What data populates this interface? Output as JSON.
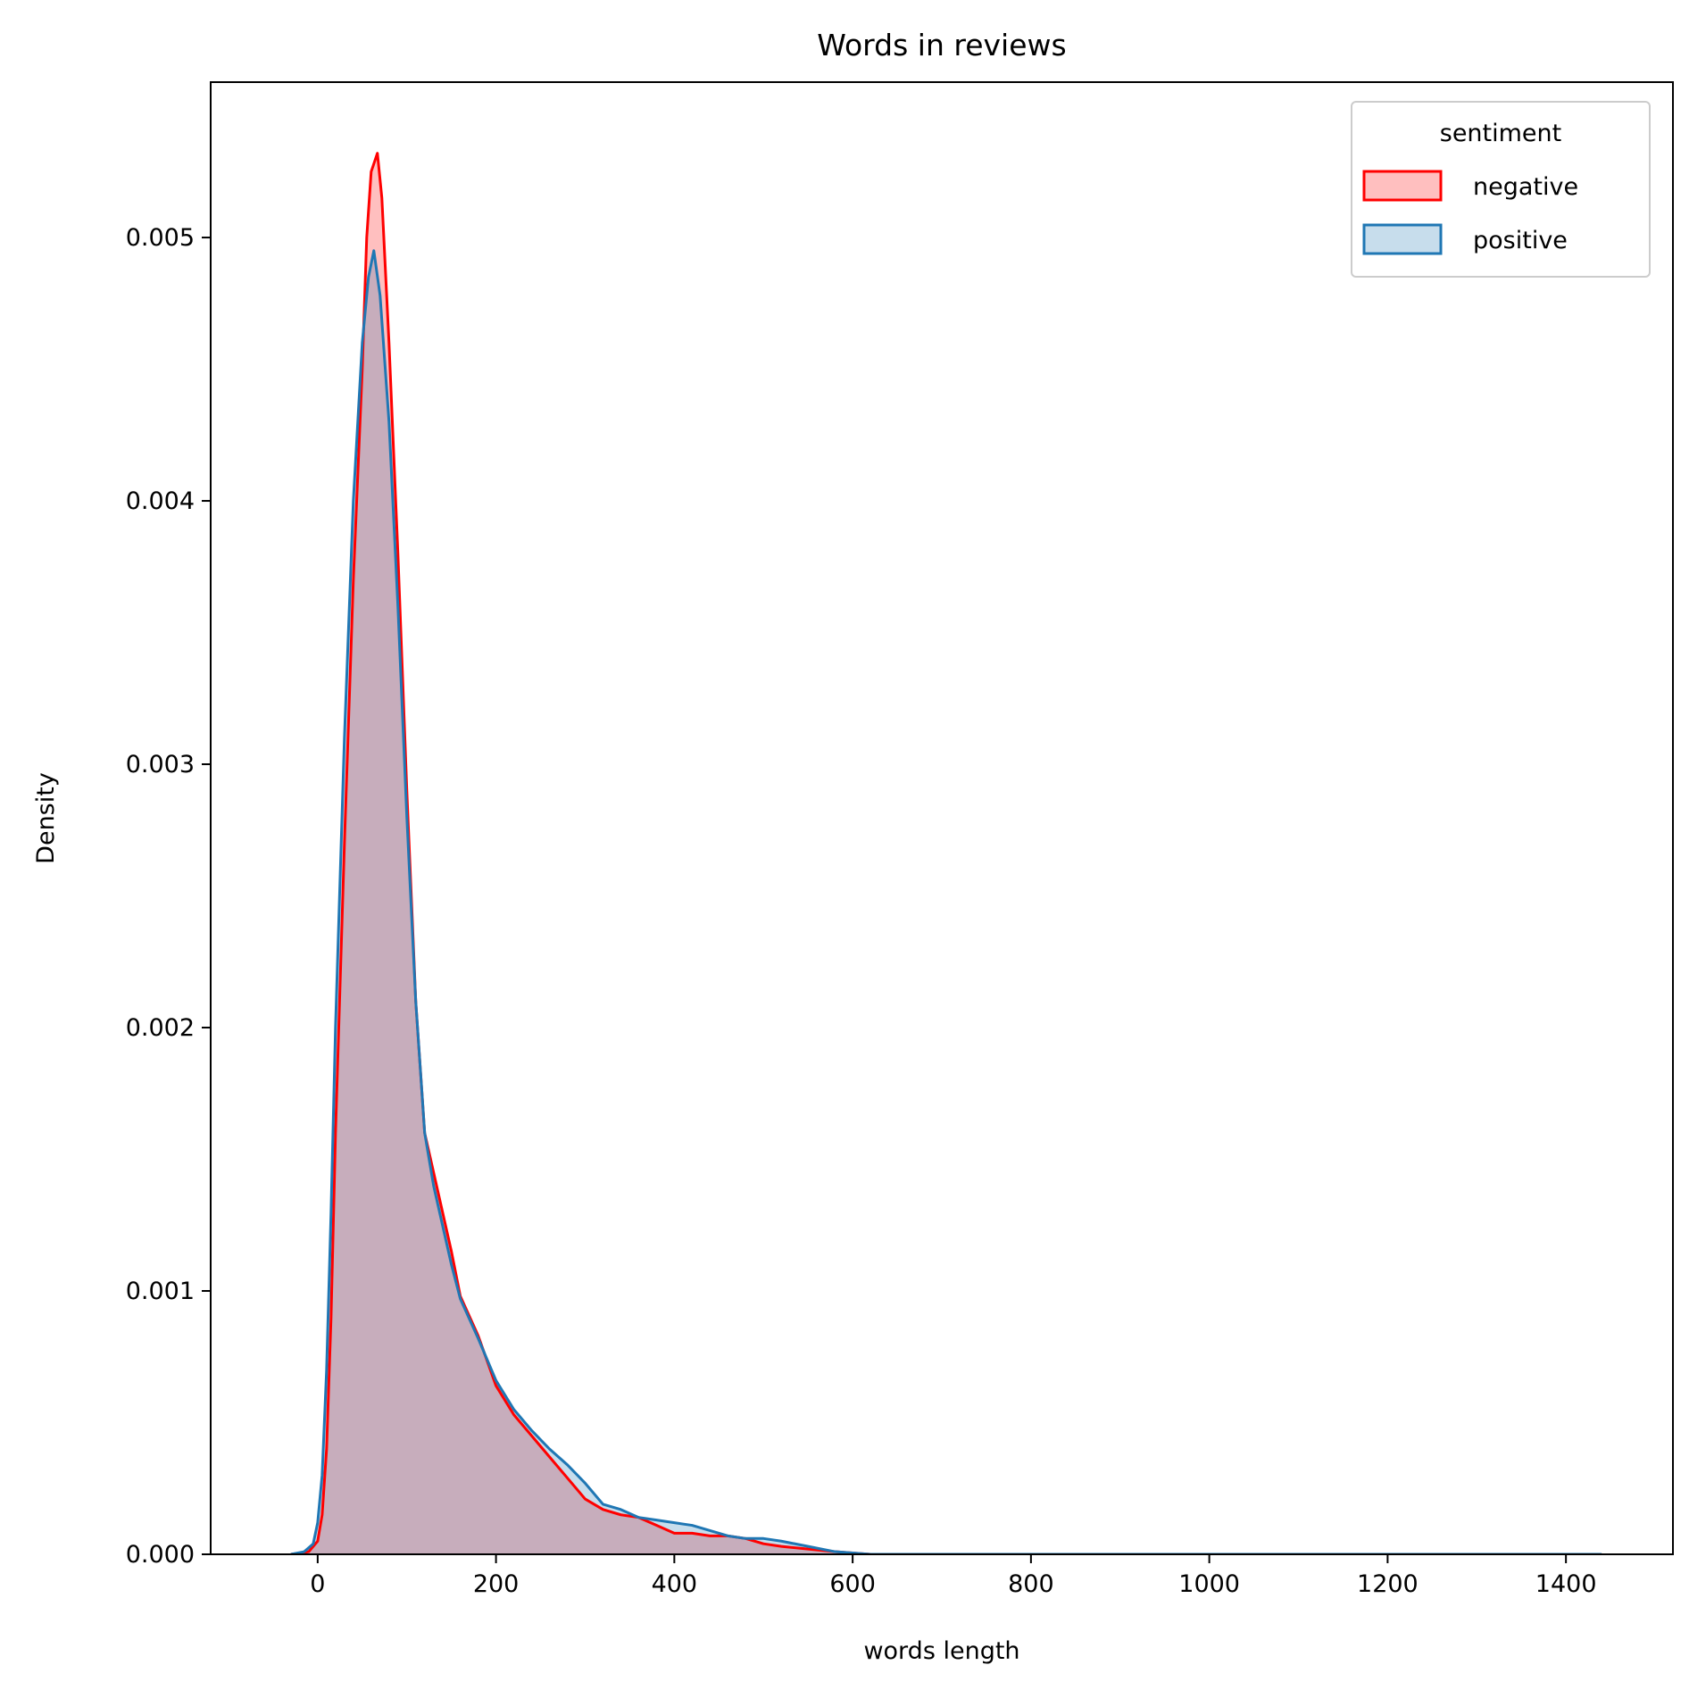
{
  "chart_data": {
    "type": "area",
    "title": "Words in reviews",
    "xlabel": "words length",
    "ylabel": "Density",
    "xlim": [
      -120,
      1520
    ],
    "ylim": [
      0,
      0.00559
    ],
    "x_ticks": [
      0,
      200,
      400,
      600,
      800,
      1000,
      1200,
      1400
    ],
    "x_tick_labels": [
      "0",
      "200",
      "400",
      "600",
      "800",
      "1000",
      "1200",
      "1400"
    ],
    "y_ticks": [
      0,
      0.001,
      0.002,
      0.003,
      0.004,
      0.005
    ],
    "y_tick_labels": [
      "0.000",
      "0.001",
      "0.002",
      "0.003",
      "0.004",
      "0.005"
    ],
    "grid": false,
    "legend": {
      "title": "sentiment",
      "placement": "top-right"
    },
    "series": [
      {
        "name": "negative",
        "line_color": "#ff0000",
        "fill_color": "#ff0000",
        "fill_opacity": 0.25,
        "points": [
          [
            -30,
            0
          ],
          [
            -10,
            1e-05
          ],
          [
            0,
            5e-05
          ],
          [
            5,
            0.00015
          ],
          [
            10,
            0.0004
          ],
          [
            15,
            0.0009
          ],
          [
            20,
            0.0016
          ],
          [
            30,
            0.0027
          ],
          [
            40,
            0.0037
          ],
          [
            50,
            0.0045
          ],
          [
            55,
            0.005
          ],
          [
            60,
            0.00525
          ],
          [
            67,
            0.00532
          ],
          [
            72,
            0.00515
          ],
          [
            80,
            0.0046
          ],
          [
            90,
            0.0038
          ],
          [
            100,
            0.0029
          ],
          [
            110,
            0.0021
          ],
          [
            120,
            0.0016
          ],
          [
            130,
            0.00145
          ],
          [
            140,
            0.0013
          ],
          [
            150,
            0.00115
          ],
          [
            160,
            0.00098
          ],
          [
            180,
            0.00083
          ],
          [
            200,
            0.00064
          ],
          [
            220,
            0.00053
          ],
          [
            240,
            0.00045
          ],
          [
            260,
            0.00037
          ],
          [
            280,
            0.00029
          ],
          [
            300,
            0.00021
          ],
          [
            320,
            0.00017
          ],
          [
            340,
            0.00015
          ],
          [
            360,
            0.00014
          ],
          [
            380,
            0.00011
          ],
          [
            400,
            8e-05
          ],
          [
            420,
            8e-05
          ],
          [
            440,
            7e-05
          ],
          [
            460,
            7e-05
          ],
          [
            480,
            6e-05
          ],
          [
            500,
            4e-05
          ],
          [
            520,
            3e-05
          ],
          [
            550,
            2e-05
          ],
          [
            580,
            1e-05
          ],
          [
            620,
            0
          ],
          [
            700,
            0
          ],
          [
            900,
            0
          ],
          [
            1100,
            0
          ],
          [
            1300,
            0
          ],
          [
            1440,
            0
          ]
        ]
      },
      {
        "name": "positive",
        "line_color": "#1f77b4",
        "fill_color": "#1f77b4",
        "fill_opacity": 0.25,
        "points": [
          [
            -30,
            0
          ],
          [
            -15,
            1e-05
          ],
          [
            -5,
            4e-05
          ],
          [
            0,
            0.00012
          ],
          [
            5,
            0.0003
          ],
          [
            10,
            0.0007
          ],
          [
            15,
            0.0013
          ],
          [
            20,
            0.002
          ],
          [
            30,
            0.0031
          ],
          [
            40,
            0.004
          ],
          [
            50,
            0.0046
          ],
          [
            57,
            0.00485
          ],
          [
            63,
            0.00495
          ],
          [
            70,
            0.00478
          ],
          [
            80,
            0.0043
          ],
          [
            90,
            0.0036
          ],
          [
            100,
            0.0028
          ],
          [
            110,
            0.0021
          ],
          [
            120,
            0.0016
          ],
          [
            130,
            0.0014
          ],
          [
            140,
            0.00125
          ],
          [
            150,
            0.0011
          ],
          [
            160,
            0.00097
          ],
          [
            180,
            0.00082
          ],
          [
            200,
            0.00066
          ],
          [
            220,
            0.00055
          ],
          [
            240,
            0.00047
          ],
          [
            260,
            0.0004
          ],
          [
            280,
            0.00034
          ],
          [
            300,
            0.00027
          ],
          [
            320,
            0.00019
          ],
          [
            340,
            0.00017
          ],
          [
            360,
            0.00014
          ],
          [
            380,
            0.00013
          ],
          [
            400,
            0.00012
          ],
          [
            420,
            0.00011
          ],
          [
            440,
            9e-05
          ],
          [
            460,
            7e-05
          ],
          [
            480,
            6e-05
          ],
          [
            500,
            6e-05
          ],
          [
            520,
            5e-05
          ],
          [
            550,
            3e-05
          ],
          [
            580,
            1e-05
          ],
          [
            620,
            0
          ],
          [
            700,
            0
          ],
          [
            900,
            0
          ],
          [
            1100,
            0
          ],
          [
            1300,
            0
          ],
          [
            1440,
            0
          ]
        ]
      }
    ]
  }
}
